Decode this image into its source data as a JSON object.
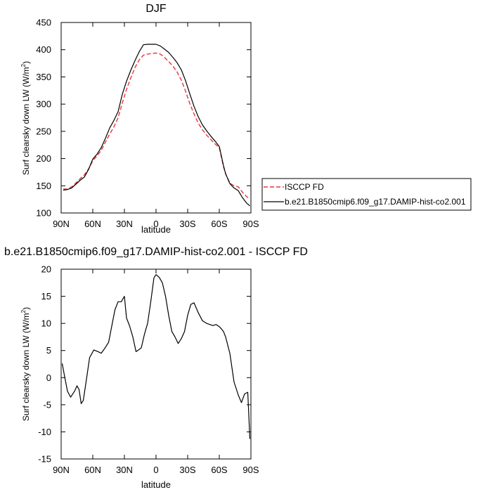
{
  "chart_data": [
    {
      "type": "line",
      "title": "DJF",
      "xlabel": "latitude",
      "ylabel": "Surf clearsky down LW (W/m²)",
      "ylabel_parts": {
        "main": "Surf clearsky down LW (W/m",
        "sup": "2",
        "end": ")"
      },
      "xlim": [
        90,
        -90
      ],
      "ylim": [
        100,
        450
      ],
      "x_ticks": [
        90,
        60,
        30,
        0,
        -30,
        -60,
        -90
      ],
      "x_tick_labels": [
        "90N",
        "60N",
        "30N",
        "0",
        "30S",
        "60S",
        "90S"
      ],
      "y_ticks": [
        100,
        150,
        200,
        250,
        300,
        350,
        400,
        450
      ],
      "y_tick_labels": [
        "100",
        "150",
        "200",
        "250",
        "300",
        "350",
        "400",
        "450"
      ],
      "legend": "right",
      "grid": false,
      "series": [
        {
          "name": "ISCCP FD",
          "color": "#e8353b",
          "dash": true,
          "x": [
            88,
            84,
            80,
            76,
            72,
            68,
            64,
            60,
            56,
            52,
            48,
            44,
            40,
            36,
            32,
            28,
            24,
            20,
            16,
            12,
            8,
            4,
            0,
            -4,
            -8,
            -12,
            -16,
            -20,
            -24,
            -28,
            -32,
            -36,
            -40,
            -44,
            -48,
            -52,
            -56,
            -60,
            -64,
            -66,
            -70,
            -74,
            -78,
            -82,
            -86,
            -89
          ],
          "y": [
            144,
            144,
            148,
            155,
            163,
            170,
            181,
            196,
            205,
            215,
            230,
            245,
            258,
            275,
            302,
            327,
            348,
            367,
            381,
            390,
            392,
            393,
            394,
            392,
            386,
            378,
            370,
            359,
            344,
            324,
            301,
            282,
            265,
            253,
            243,
            235,
            227,
            220,
            185,
            172,
            155,
            150,
            148,
            138,
            130,
            126
          ]
        },
        {
          "name": "b.e21.B1850cmip6.f09_g17.DAMIP-hist-co2.001",
          "color": "#000000",
          "dash": false,
          "x": [
            88,
            84,
            80,
            76,
            72,
            68,
            64,
            60,
            56,
            52,
            48,
            44,
            40,
            36,
            32,
            28,
            24,
            20,
            16,
            12,
            8,
            4,
            0,
            -4,
            -8,
            -12,
            -16,
            -20,
            -24,
            -28,
            -32,
            -36,
            -40,
            -44,
            -48,
            -52,
            -56,
            -60,
            -64,
            -66,
            -70,
            -74,
            -78,
            -82,
            -86,
            -89
          ],
          "y": [
            142,
            143,
            146,
            153,
            160,
            166,
            180,
            199,
            208,
            220,
            237,
            256,
            270,
            286,
            318,
            342,
            362,
            380,
            396,
            409,
            410,
            410,
            410,
            407,
            401,
            395,
            386,
            376,
            363,
            343,
            319,
            296,
            277,
            262,
            251,
            241,
            232,
            222,
            187,
            172,
            154,
            146,
            141,
            128,
            118,
            113
          ]
        }
      ]
    },
    {
      "type": "line",
      "title": "b.e21.B1850cmip6.f09_g17.DAMIP-hist-co2.001 - ISCCP FD",
      "xlabel": "latitude",
      "ylabel": "Surf clearsky down LW (W/m²)",
      "ylabel_parts": {
        "main": "Surf clearsky down LW (W/m",
        "sup": "2",
        "end": ")"
      },
      "xlim": [
        90,
        -90
      ],
      "ylim": [
        -15,
        20
      ],
      "x_ticks": [
        90,
        60,
        30,
        0,
        -30,
        -60,
        -90
      ],
      "x_tick_labels": [
        "90N",
        "60N",
        "30N",
        "0",
        "30S",
        "60S",
        "90S"
      ],
      "y_ticks": [
        -15,
        -10,
        -5,
        0,
        5,
        10,
        15,
        20
      ],
      "y_tick_labels": [
        "-15",
        "-10",
        "-5",
        "0",
        "5",
        "10",
        "15",
        "20"
      ],
      "grid": false,
      "series": [
        {
          "color": "#000000",
          "x": [
            89,
            87,
            84,
            81,
            77,
            75,
            73,
            71,
            69,
            66,
            63,
            59,
            55,
            52,
            49,
            45,
            42,
            39,
            36,
            33,
            30,
            28,
            25,
            22,
            19,
            16,
            14,
            11,
            8,
            5,
            2,
            0,
            -3,
            -6,
            -9,
            -12,
            -15,
            -18,
            -21,
            -24,
            -27,
            -30,
            -33,
            -36,
            -40,
            -44,
            -48,
            -51,
            -54,
            -57,
            -60,
            -62,
            -64,
            -66,
            -70,
            -74,
            -78,
            -81,
            -84,
            -87,
            -89
          ],
          "y": [
            2.6,
            0.5,
            -2.5,
            -3.6,
            -2.4,
            -1.5,
            -2.2,
            -4.8,
            -4.2,
            -0.3,
            3.7,
            5.1,
            4.8,
            4.5,
            5.3,
            6.5,
            9.5,
            12.5,
            14,
            14,
            15,
            11,
            9.5,
            7.5,
            4.8,
            5.2,
            5.5,
            8,
            10,
            14,
            18.4,
            19,
            18.5,
            17.5,
            15,
            11.5,
            8.5,
            7.5,
            6.3,
            7.2,
            8.5,
            11.5,
            13.5,
            13.8,
            12,
            10.5,
            10,
            9.8,
            9.6,
            9.8,
            9.4,
            9,
            8.5,
            7.5,
            4.5,
            -0.8,
            -3.2,
            -4.6,
            -3,
            -2.7,
            -11.3
          ]
        }
      ]
    }
  ]
}
